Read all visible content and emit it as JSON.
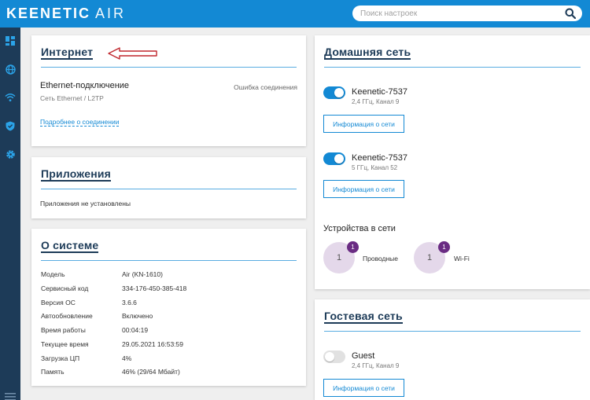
{
  "header": {
    "logo": "KEENETIC",
    "logo_suffix": "AIR",
    "search_placeholder": "Поиск настроек"
  },
  "sidebar": {
    "items": [
      {
        "icon": "dashboard-icon"
      },
      {
        "icon": "globe-icon"
      },
      {
        "icon": "wifi-icon"
      },
      {
        "icon": "shield-icon"
      },
      {
        "icon": "gear-icon"
      }
    ],
    "menu_icon": "hamburger-icon"
  },
  "internet": {
    "title": "Интернет",
    "connection_name": "Ethernet-подключение",
    "connection_type": "Сеть Ethernet / L2TP",
    "status": "Ошибка соединения",
    "details_link": "Подробнее о соединении"
  },
  "apps": {
    "title": "Приложения",
    "empty_text": "Приложения не установлены"
  },
  "system": {
    "title": "О системе",
    "rows": [
      {
        "label": "Модель",
        "value": "Air (KN-1610)"
      },
      {
        "label": "Сервисный код",
        "value": "334-176-450-385-418"
      },
      {
        "label": "Версия ОС",
        "value": "3.6.6"
      },
      {
        "label": "Автообновление",
        "value": "Включено"
      },
      {
        "label": "Время работы",
        "value": "00:04:19"
      },
      {
        "label": "Текущее время",
        "value": "29.05.2021 16:53:59"
      },
      {
        "label": "Загрузка ЦП",
        "value": "4%"
      },
      {
        "label": "Память",
        "value": "46% (29/64 Мбайт)"
      }
    ]
  },
  "home_network": {
    "title": "Домашняя сеть",
    "networks": [
      {
        "name": "Keenetic-7537",
        "band": "2,4 ГГц, Канал 9",
        "enabled": true,
        "button": "Информация о сети"
      },
      {
        "name": "Keenetic-7537",
        "band": "5 ГГц, Канал 52",
        "enabled": true,
        "button": "Информация о сети"
      }
    ],
    "devices_title": "Устройства в сети",
    "devices": [
      {
        "count": "1",
        "badge": "1",
        "label": "Проводные"
      },
      {
        "count": "1",
        "badge": "1",
        "label": "Wi-Fi"
      }
    ]
  },
  "guest_network": {
    "title": "Гостевая сеть",
    "name": "Guest",
    "band": "2,4 ГГц, Канал 9",
    "enabled": false,
    "button": "Информация о сети"
  },
  "colors": {
    "accent": "#1389d4",
    "sidebar": "#1d3b58",
    "badge": "#6a2c83",
    "annotation_arrow": "#c0272d"
  }
}
